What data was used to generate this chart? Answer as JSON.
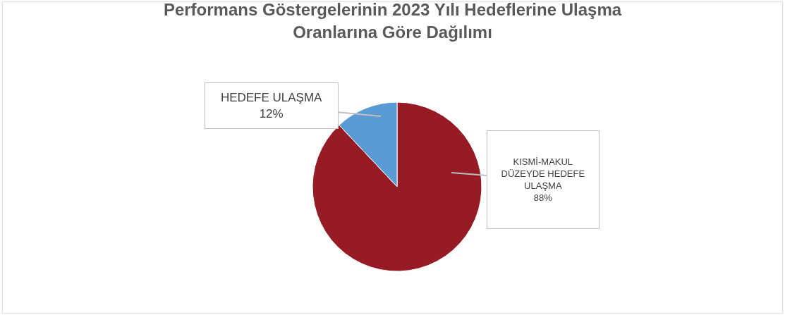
{
  "chart_data": {
    "type": "pie",
    "title": "Performans Göstergelerinin 2023 Yılı Hedeflerine Ulaşma Oranlarına Göre Dağılımı",
    "categories": [
      "KISMİ-MAKUL DÜZEYDE HEDEFE ULAŞMA",
      "HEDEFE ULAŞMA"
    ],
    "values": [
      88,
      12
    ],
    "colors": [
      "#961b25",
      "#5b9bd5"
    ],
    "value_labels": [
      "88%",
      "12%"
    ],
    "legend": false
  }
}
